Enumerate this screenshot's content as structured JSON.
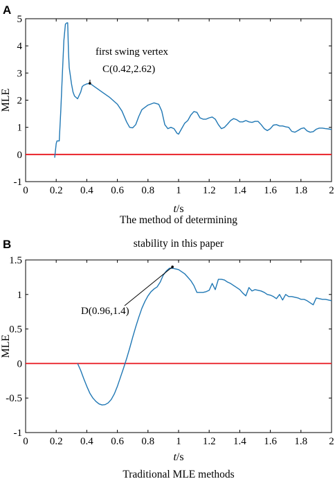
{
  "chart_data": [
    {
      "panel": "A",
      "type": "line",
      "xlabel_italic": "t",
      "xlabel_unit": "/s",
      "ylabel": "MLE",
      "xlim": [
        0,
        2
      ],
      "ylim": [
        -1,
        5
      ],
      "xticks": [
        "0",
        "0.2",
        "0.4",
        "0.6",
        "0.8",
        "1",
        "1.2",
        "1.4",
        "1.6",
        "1.8",
        "2"
      ],
      "yticks": [
        "-1",
        "0",
        "1",
        "2",
        "3",
        "4",
        "5"
      ],
      "caption_lines": [
        "The method of determining",
        "stability in this paper"
      ],
      "reference_line": {
        "y": 0,
        "color": "#e8141c"
      },
      "line_color": "#1f77b4",
      "annotation": {
        "lines": [
          "first swing vertex",
          "C(0.42,2.62)"
        ],
        "point": [
          0.42,
          2.62
        ]
      },
      "series": [
        {
          "x": [
            0.19,
            0.2,
            0.205,
            0.21,
            0.22,
            0.23,
            0.24,
            0.25,
            0.26,
            0.27,
            0.275,
            0.28,
            0.285,
            0.29,
            0.3,
            0.31,
            0.32,
            0.34,
            0.36,
            0.37,
            0.38,
            0.4,
            0.42,
            0.45,
            0.5,
            0.55,
            0.6,
            0.63,
            0.66,
            0.68,
            0.7,
            0.72,
            0.74,
            0.76,
            0.8,
            0.84,
            0.87,
            0.89,
            0.91,
            0.93,
            0.95,
            0.97,
            0.99,
            1.0,
            1.02,
            1.04,
            1.06,
            1.08,
            1.1,
            1.12,
            1.14,
            1.16,
            1.18,
            1.2,
            1.22,
            1.24,
            1.26,
            1.28,
            1.3,
            1.32,
            1.34,
            1.36,
            1.38,
            1.4,
            1.42,
            1.44,
            1.46,
            1.48,
            1.5,
            1.52,
            1.54,
            1.56,
            1.58,
            1.6,
            1.62,
            1.64,
            1.66,
            1.68,
            1.7,
            1.72,
            1.74,
            1.76,
            1.78,
            1.8,
            1.82,
            1.84,
            1.86,
            1.88,
            1.9,
            1.92,
            1.94,
            1.96,
            1.98,
            2.0
          ],
          "y": [
            -0.12,
            0.4,
            0.5,
            0.5,
            0.5,
            1.6,
            2.9,
            4.2,
            4.8,
            4.85,
            4.85,
            3.8,
            3.2,
            3.0,
            2.6,
            2.3,
            2.15,
            2.05,
            2.3,
            2.5,
            2.55,
            2.6,
            2.62,
            2.5,
            2.3,
            2.1,
            1.85,
            1.6,
            1.2,
            1.0,
            0.98,
            1.1,
            1.4,
            1.65,
            1.82,
            1.9,
            1.85,
            1.6,
            1.1,
            0.95,
            1.0,
            0.95,
            0.78,
            0.75,
            0.95,
            1.15,
            1.25,
            1.45,
            1.58,
            1.55,
            1.35,
            1.3,
            1.3,
            1.35,
            1.38,
            1.3,
            1.1,
            0.95,
            1.0,
            1.12,
            1.25,
            1.32,
            1.28,
            1.2,
            1.2,
            1.25,
            1.2,
            1.18,
            1.22,
            1.22,
            1.1,
            0.95,
            0.88,
            0.95,
            1.08,
            1.1,
            1.05,
            1.05,
            1.02,
            1.0,
            0.85,
            0.82,
            0.88,
            0.95,
            0.98,
            0.87,
            0.82,
            0.84,
            0.93,
            0.97,
            0.97,
            0.95,
            0.94,
            0.92
          ]
        }
      ]
    },
    {
      "panel": "B",
      "type": "line",
      "xlabel_italic": "t",
      "xlabel_unit": "/s",
      "ylabel": "MLE",
      "xlim": [
        0,
        2
      ],
      "ylim": [
        -1,
        1.5
      ],
      "xticks": [
        "0",
        "0.2",
        "0.4",
        "0.6",
        "0.8",
        "1",
        "1.2",
        "1.4",
        "1.6",
        "1.8",
        "2"
      ],
      "yticks": [
        "-1",
        "-0.5",
        "0",
        "0.5",
        "1",
        "1.5"
      ],
      "caption_lines": [
        "Traditional MLE methods"
      ],
      "reference_line": {
        "y": 0,
        "color": "#e8141c"
      },
      "line_color": "#1f77b4",
      "annotation": {
        "lines": [
          "D(0.96,1.4)"
        ],
        "point": [
          0.96,
          1.4
        ]
      },
      "series": [
        {
          "x": [
            0.34,
            0.36,
            0.38,
            0.4,
            0.42,
            0.44,
            0.46,
            0.48,
            0.5,
            0.52,
            0.54,
            0.56,
            0.58,
            0.6,
            0.62,
            0.64,
            0.66,
            0.68,
            0.7,
            0.72,
            0.74,
            0.76,
            0.78,
            0.8,
            0.82,
            0.84,
            0.86,
            0.88,
            0.9,
            0.92,
            0.94,
            0.96,
            0.98,
            1.0,
            1.02,
            1.04,
            1.06,
            1.08,
            1.1,
            1.12,
            1.14,
            1.16,
            1.18,
            1.2,
            1.22,
            1.24,
            1.26,
            1.28,
            1.3,
            1.32,
            1.34,
            1.36,
            1.38,
            1.4,
            1.42,
            1.44,
            1.46,
            1.48,
            1.5,
            1.52,
            1.54,
            1.56,
            1.58,
            1.6,
            1.62,
            1.64,
            1.66,
            1.68,
            1.7,
            1.72,
            1.74,
            1.76,
            1.78,
            1.8,
            1.82,
            1.84,
            1.86,
            1.88,
            1.9,
            1.92,
            1.94,
            1.96,
            1.98,
            2.0
          ],
          "y": [
            0.0,
            -0.1,
            -0.22,
            -0.33,
            -0.43,
            -0.5,
            -0.55,
            -0.585,
            -0.6,
            -0.595,
            -0.57,
            -0.52,
            -0.44,
            -0.33,
            -0.2,
            -0.07,
            0.07,
            0.22,
            0.38,
            0.53,
            0.67,
            0.8,
            0.9,
            0.98,
            1.04,
            1.08,
            1.11,
            1.18,
            1.28,
            1.34,
            1.38,
            1.38,
            1.37,
            1.36,
            1.33,
            1.3,
            1.25,
            1.2,
            1.13,
            1.03,
            1.03,
            1.03,
            1.04,
            1.06,
            1.16,
            1.07,
            1.22,
            1.22,
            1.21,
            1.18,
            1.16,
            1.13,
            1.1,
            1.07,
            1.02,
            0.98,
            1.1,
            1.05,
            1.07,
            1.06,
            1.05,
            1.03,
            1.0,
            0.99,
            0.97,
            0.94,
            1.0,
            0.92,
            1.0,
            0.97,
            0.97,
            0.96,
            0.95,
            0.93,
            0.93,
            0.91,
            0.88,
            0.85,
            0.95,
            0.94,
            0.93,
            0.93,
            0.92,
            0.91
          ]
        }
      ]
    }
  ]
}
